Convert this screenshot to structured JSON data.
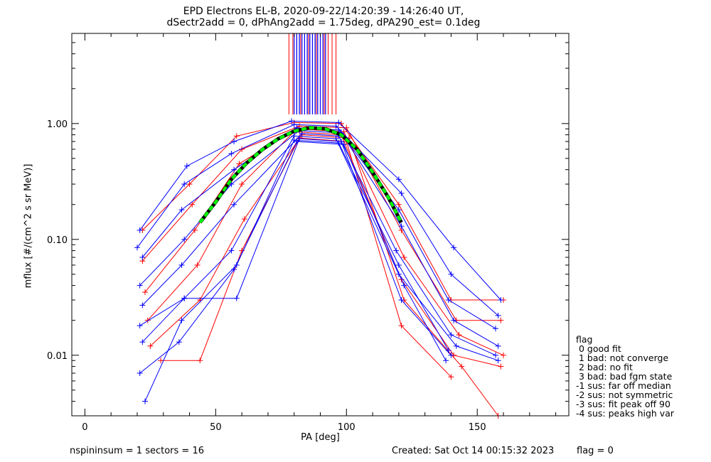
{
  "title_line1": "EPD Electrons EL-B, 2020-09-22/14:20:39 - 14:26:40 UT,",
  "title_line2": "dSectr2add = 0, dPhAng2add = 1.75deg, dPA290_est=   0.1deg",
  "footer_left": "nspininsum =  1  sectors = 16",
  "footer_created": "Created: Sat Oct 14 00:15:32 2023",
  "footer_flag": "flag = 0",
  "legend": {
    "title": "flag",
    "items": [
      " 0 good fit",
      " 1 bad: not converge",
      " 2 bad: no fit",
      " 3 bad: bad fgm state",
      "-1 sus: far off median",
      "-2 sus: not symmetric",
      "-3 sus: fit peak off 90",
      "-4 sus: peaks high var"
    ]
  },
  "colors": {
    "red": "#ff0000",
    "blue": "#0000ff",
    "green": "#00ff00",
    "black": "#000000"
  },
  "chart_data": {
    "type": "line",
    "title": "EPD Electrons EL-B, 2020-09-22/14:20:39 - 14:26:40 UT,",
    "subtitle": "dSectr2add = 0, dPhAng2add = 1.75deg, dPA290_est=   0.1deg",
    "xlabel": "PA [deg]",
    "ylabel": "mflux [#/(cm^2 s sr MeV)]",
    "xlim": [
      -5,
      185
    ],
    "ylim": [
      0.003,
      6
    ],
    "yscale": "log",
    "xticks": [
      0,
      50,
      100,
      150
    ],
    "yticks": [
      0.01,
      0.1,
      1.0
    ],
    "ytick_labels": [
      "0.01",
      "0.10",
      "1.00"
    ],
    "vertical_lines": {
      "red_x": [
        78,
        79.5,
        81,
        82.5,
        84,
        85.5,
        87,
        88.5,
        90,
        91.5,
        93,
        94.5,
        96
      ],
      "blue_x": [
        80,
        81,
        82,
        83,
        84,
        85,
        86,
        87,
        88,
        89,
        90,
        91,
        92
      ],
      "y_range": [
        1.2,
        6
      ]
    },
    "series": [
      {
        "color": "red",
        "x": [
          22,
          40,
          58,
          80,
          98,
          120,
          140,
          160
        ],
        "y": [
          0.12,
          0.3,
          0.78,
          1.02,
          1.0,
          0.2,
          0.03,
          0.03
        ]
      },
      {
        "color": "red",
        "x": [
          22,
          41,
          60,
          82,
          100,
          121,
          142,
          159
        ],
        "y": [
          0.065,
          0.2,
          0.6,
          0.95,
          0.92,
          0.12,
          0.02,
          0.02
        ]
      },
      {
        "color": "red",
        "x": [
          23,
          42,
          59,
          81,
          99,
          122,
          143,
          160
        ],
        "y": [
          0.035,
          0.12,
          0.45,
          0.9,
          0.85,
          0.07,
          0.015,
          0.01
        ]
      },
      {
        "color": "red",
        "x": [
          24,
          43,
          60,
          80,
          98,
          121,
          141,
          159
        ],
        "y": [
          0.02,
          0.06,
          0.3,
          0.85,
          0.8,
          0.045,
          0.01,
          0.008
        ]
      },
      {
        "color": "red",
        "x": [
          25,
          44,
          61,
          83,
          101,
          122,
          144,
          158
        ],
        "y": [
          0.012,
          0.03,
          0.15,
          0.8,
          0.75,
          0.03,
          0.008,
          0.003
        ]
      },
      {
        "color": "red",
        "x": [
          29,
          44,
          60,
          82,
          100,
          121,
          140
        ],
        "y": [
          0.009,
          0.009,
          0.08,
          0.75,
          0.7,
          0.018,
          0.0065
        ]
      },
      {
        "color": "blue",
        "x": [
          21,
          39,
          57,
          79,
          97,
          120,
          141,
          159
        ],
        "y": [
          0.12,
          0.43,
          0.7,
          1.05,
          1.02,
          0.33,
          0.085,
          0.03
        ]
      },
      {
        "color": "blue",
        "x": [
          20,
          38,
          56,
          80,
          96,
          121,
          140,
          158
        ],
        "y": [
          0.085,
          0.3,
          0.55,
          0.98,
          0.95,
          0.25,
          0.05,
          0.022
        ]
      },
      {
        "color": "blue",
        "x": [
          22,
          37,
          57,
          81,
          97,
          120,
          139,
          157
        ],
        "y": [
          0.07,
          0.18,
          0.4,
          0.92,
          0.88,
          0.18,
          0.03,
          0.017
        ]
      },
      {
        "color": "blue",
        "x": [
          21,
          38,
          56,
          82,
          98,
          121,
          141,
          158
        ],
        "y": [
          0.04,
          0.1,
          0.3,
          0.87,
          0.83,
          0.13,
          0.02,
          0.012
        ]
      },
      {
        "color": "blue",
        "x": [
          22,
          37,
          57,
          83,
          97,
          119,
          140,
          157
        ],
        "y": [
          0.027,
          0.06,
          0.2,
          0.82,
          0.78,
          0.08,
          0.015,
          0.01
        ]
      },
      {
        "color": "blue",
        "x": [
          21,
          38,
          56,
          80,
          96,
          120,
          142,
          158
        ],
        "y": [
          0.018,
          0.031,
          0.08,
          0.78,
          0.74,
          0.05,
          0.012,
          0.009
        ]
      },
      {
        "color": "blue",
        "x": [
          22,
          38,
          58,
          82,
          98,
          121,
          140
        ],
        "y": [
          0.013,
          0.031,
          0.031,
          0.74,
          0.7,
          0.03,
          0.01
        ]
      },
      {
        "color": "blue",
        "x": [
          21,
          36,
          57,
          81,
          99,
          122,
          138
        ],
        "y": [
          0.007,
          0.013,
          0.055,
          0.7,
          0.66,
          0.04,
          0.009
        ]
      },
      {
        "color": "blue",
        "x": [
          23,
          37,
          58,
          80,
          97,
          120,
          139
        ],
        "y": [
          0.004,
          0.02,
          0.06,
          0.72,
          0.68,
          0.06,
          0.011
        ]
      }
    ],
    "fit_curve": {
      "color": "green",
      "x": [
        44,
        50,
        56,
        62,
        68,
        74,
        80,
        86,
        92,
        98,
        104,
        110,
        116,
        121
      ],
      "y": [
        0.14,
        0.21,
        0.33,
        0.46,
        0.6,
        0.74,
        0.86,
        0.92,
        0.9,
        0.8,
        0.6,
        0.38,
        0.23,
        0.14
      ]
    }
  }
}
